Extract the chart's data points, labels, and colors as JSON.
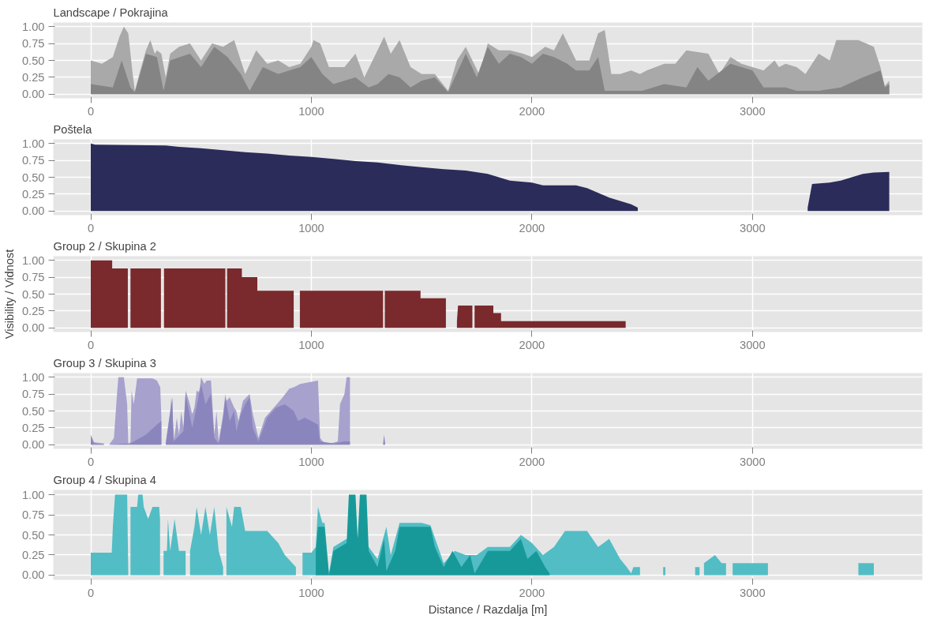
{
  "chart_data": [
    {
      "type": "area",
      "title": "Landscape / Pokrajina",
      "xlim": [
        -170,
        3770
      ],
      "ylim": [
        -0.06,
        1.06
      ],
      "xticks": [
        0,
        1000,
        2000,
        3000
      ],
      "yticks": [
        {
          "value": 0,
          "label": "0.00"
        },
        {
          "value": 0.25,
          "label": "0.25"
        },
        {
          "value": 0.5,
          "label": "0.50"
        },
        {
          "value": 0.75,
          "label": "0.75"
        },
        {
          "value": 1,
          "label": "1.00"
        }
      ],
      "grid": true,
      "series": [
        {
          "color": "#a9a9a9",
          "x": [
            0,
            50,
            100,
            130,
            150,
            170,
            190,
            200,
            220,
            250,
            270,
            290,
            300,
            320,
            340,
            360,
            400,
            450,
            500,
            550,
            600,
            650,
            700,
            750,
            800,
            850,
            900,
            950,
            1000,
            1010,
            1040,
            1080,
            1150,
            1200,
            1240,
            1300,
            1330,
            1360,
            1400,
            1450,
            1500,
            1560,
            1620,
            1660,
            1700,
            1760,
            1800,
            1850,
            1900,
            1960,
            2000,
            2060,
            2100,
            2140,
            2200,
            2260,
            2300,
            2330,
            2360,
            2400,
            2450,
            2490,
            2520,
            2600,
            2650,
            2700,
            2800,
            2850,
            2900,
            2950,
            3000,
            3050,
            3100,
            3120,
            3150,
            3200,
            3240,
            3280,
            3300,
            3350,
            3380,
            3420,
            3480,
            3550,
            3580,
            3600,
            3620
          ],
          "values": [
            0.5,
            0.45,
            0.55,
            0.85,
            1.0,
            0.9,
            0.3,
            0.05,
            0.3,
            0.65,
            0.8,
            0.6,
            0.65,
            0.6,
            0.25,
            0.6,
            0.7,
            0.75,
            0.5,
            0.75,
            0.7,
            0.8,
            0.3,
            0.65,
            0.45,
            0.5,
            0.4,
            0.45,
            0.7,
            0.8,
            0.75,
            0.4,
            0.4,
            0.6,
            0.25,
            0.65,
            0.85,
            0.6,
            0.8,
            0.4,
            0.3,
            0.3,
            0.05,
            0.5,
            0.7,
            0.3,
            0.75,
            0.65,
            0.65,
            0.6,
            0.55,
            0.7,
            0.65,
            0.9,
            0.5,
            0.5,
            0.9,
            0.95,
            0.3,
            0.3,
            0.35,
            0.3,
            0.35,
            0.45,
            0.45,
            0.65,
            0.6,
            0.3,
            0.55,
            0.45,
            0.4,
            0.35,
            0.5,
            0.4,
            0.45,
            0.4,
            0.3,
            0.5,
            0.6,
            0.5,
            0.8,
            0.8,
            0.8,
            0.7,
            0.4,
            0.12,
            0.2
          ]
        },
        {
          "color": "#848484",
          "x": [
            0,
            100,
            140,
            180,
            200,
            250,
            300,
            330,
            360,
            450,
            500,
            560,
            620,
            680,
            720,
            780,
            850,
            900,
            950,
            1000,
            1050,
            1100,
            1200,
            1260,
            1300,
            1350,
            1400,
            1450,
            1500,
            1560,
            1620,
            1700,
            1750,
            1800,
            1850,
            1900,
            1950,
            2000,
            2050,
            2100,
            2160,
            2200,
            2260,
            2300,
            2330,
            2400,
            2500,
            2600,
            2700,
            2750,
            2800,
            2900,
            2950,
            3000,
            3050,
            3150,
            3200,
            3300,
            3400,
            3500,
            3580,
            3600,
            3620
          ],
          "values": [
            0.15,
            0.1,
            0.5,
            0.1,
            0.03,
            0.6,
            0.55,
            0.05,
            0.5,
            0.6,
            0.4,
            0.7,
            0.55,
            0.3,
            0.05,
            0.4,
            0.3,
            0.35,
            0.4,
            0.55,
            0.3,
            0.15,
            0.25,
            0.1,
            0.15,
            0.3,
            0.25,
            0.1,
            0.2,
            0.25,
            0.03,
            0.6,
            0.25,
            0.7,
            0.45,
            0.6,
            0.55,
            0.45,
            0.6,
            0.55,
            0.45,
            0.35,
            0.35,
            0.55,
            0.05,
            0.05,
            0.05,
            0.15,
            0.1,
            0.4,
            0.2,
            0.45,
            0.4,
            0.35,
            0.1,
            0.1,
            0.05,
            0.05,
            0.1,
            0.25,
            0.35,
            0.1,
            0.15
          ]
        }
      ]
    },
    {
      "type": "area",
      "title": "Poštela",
      "xlim": [
        -170,
        3770
      ],
      "ylim": [
        -0.06,
        1.06
      ],
      "xticks": [
        0,
        1000,
        2000,
        3000
      ],
      "yticks": [
        {
          "value": 0,
          "label": "0.00"
        },
        {
          "value": 0.25,
          "label": "0.25"
        },
        {
          "value": 0.5,
          "label": "0.50"
        },
        {
          "value": 0.75,
          "label": "0.75"
        },
        {
          "value": 1,
          "label": "1.00"
        }
      ],
      "grid": true,
      "series": [
        {
          "color": "#2b2c5a",
          "x": [
            0,
            20,
            340,
            400,
            500,
            600,
            700,
            800,
            900,
            1000,
            1100,
            1200,
            1300,
            1400,
            1500,
            1600,
            1700,
            1800,
            1900,
            2000,
            2050,
            2200,
            2250,
            2300,
            2350,
            2400,
            2450,
            2480,
            2900,
            3250,
            3270,
            3350,
            3400,
            3450,
            3500,
            3550,
            3620
          ],
          "values": [
            1.0,
            0.98,
            0.97,
            0.95,
            0.93,
            0.9,
            0.87,
            0.85,
            0.82,
            0.8,
            0.77,
            0.74,
            0.72,
            0.68,
            0.65,
            0.62,
            0.6,
            0.55,
            0.45,
            0.42,
            0.38,
            0.38,
            0.34,
            0.27,
            0.2,
            0.15,
            0.1,
            0.05,
            null,
            0.05,
            0.4,
            0.42,
            0.45,
            0.5,
            0.55,
            0.57,
            0.58
          ]
        }
      ]
    },
    {
      "type": "area",
      "title": "Group 2 / Skupina 2",
      "ylabel": "Visibility / Vidnost",
      "xlim": [
        -170,
        3770
      ],
      "ylim": [
        -0.06,
        1.06
      ],
      "xticks": [
        0,
        1000,
        2000,
        3000
      ],
      "yticks": [
        {
          "value": 0,
          "label": "0.00"
        },
        {
          "value": 0.25,
          "label": "0.25"
        },
        {
          "value": 0.5,
          "label": "0.50"
        },
        {
          "value": 0.75,
          "label": "0.75"
        },
        {
          "value": 1,
          "label": "1.00"
        }
      ],
      "grid": true,
      "series": [
        {
          "color": "#7a2a2c",
          "x": [
            0,
            97,
            97,
            168,
            174,
            180,
            318,
            325,
            332,
            610,
            614,
            618,
            685,
            685,
            755,
            755,
            920,
            934,
            948,
            1325,
            1329,
            1333,
            1495,
            1495,
            1610,
            1635,
            1660,
            1665,
            1730,
            1735,
            1740,
            1825,
            1825,
            1860,
            1860,
            2425
          ],
          "values": [
            1.0,
            1.0,
            0.88,
            0.88,
            null,
            0.88,
            0.88,
            null,
            0.88,
            0.88,
            null,
            0.88,
            0.88,
            0.75,
            0.75,
            0.55,
            0.55,
            null,
            0.55,
            0.55,
            null,
            0.55,
            0.55,
            0.44,
            0.44,
            null,
            0.1,
            0.33,
            0.33,
            null,
            0.33,
            0.33,
            0.22,
            0.22,
            0.1,
            0.1
          ]
        }
      ]
    },
    {
      "type": "area",
      "title": "Group 3 / Skupina 3",
      "xlim": [
        -170,
        3770
      ],
      "ylim": [
        -0.06,
        1.06
      ],
      "xticks": [
        0,
        1000,
        2000,
        3000
      ],
      "yticks": [
        {
          "value": 0,
          "label": "0.00"
        },
        {
          "value": 0.25,
          "label": "0.25"
        },
        {
          "value": 0.5,
          "label": "0.50"
        },
        {
          "value": 0.75,
          "label": "0.75"
        },
        {
          "value": 1,
          "label": "1.00"
        }
      ],
      "grid": true,
      "series": [
        {
          "color": "#a6a1cd",
          "x": [
            0,
            15,
            60,
            70,
            85,
            105,
            120,
            125,
            150,
            165,
            170,
            180,
            185,
            195,
            210,
            280,
            300,
            315,
            320,
            330,
            340,
            345,
            360,
            365,
            378,
            390,
            400,
            410,
            420,
            430,
            445,
            460,
            470,
            480,
            490,
            495,
            500,
            515,
            525,
            545,
            560,
            570,
            580,
            600,
            610,
            615,
            630,
            650,
            660,
            670,
            690,
            720,
            735,
            760,
            790,
            830,
            870,
            900,
            920,
            950,
            1030,
            1040,
            1060,
            1100,
            1120,
            1130,
            1150,
            1160,
            1175
          ],
          "values": [
            0.15,
            0.04,
            0.02,
            null,
            0.01,
            0.1,
            0.8,
            1.0,
            1.0,
            0.6,
            0.02,
            0.04,
            0.8,
            0.6,
            0.98,
            0.98,
            0.95,
            0.85,
            0.4,
            null,
            0.03,
            0.15,
            0.5,
            0.7,
            0.08,
            0.4,
            0.15,
            0.5,
            0.25,
            0.8,
            0.65,
            0.45,
            0.55,
            0.8,
            0.78,
            0.85,
            1.0,
            0.9,
            0.95,
            0.95,
            0.15,
            0.5,
            0.05,
            0.45,
            0.75,
            0.65,
            0.7,
            0.55,
            0.5,
            0.35,
            0.65,
            0.75,
            0.45,
            0.1,
            0.4,
            0.55,
            0.7,
            0.83,
            0.85,
            0.9,
            0.95,
            0.1,
            0.02,
            0.03,
            0.05,
            0.6,
            0.75,
            1.0,
            1.0
          ]
        },
        {
          "color": "#8a86bd",
          "x": [
            0,
            15,
            60,
            70,
            85,
            160,
            175,
            185,
            250,
            300,
            320,
            330,
            340,
            370,
            375,
            420,
            430,
            445,
            460,
            500,
            520,
            545,
            560,
            580,
            600,
            610,
            630,
            650,
            660,
            680,
            700,
            720,
            735,
            760,
            800,
            840,
            880,
            920,
            940,
            970,
            1030,
            1040,
            1100,
            1150,
            1175,
            1250,
            1325,
            1330,
            1335
          ],
          "values": [
            0.12,
            0.02,
            0.01,
            null,
            0.0,
            0.02,
            0.01,
            0.03,
            0.15,
            0.3,
            0.35,
            null,
            0.02,
            0.7,
            0.05,
            0.2,
            0.75,
            0.5,
            0.25,
            0.9,
            0.6,
            0.75,
            0.1,
            0.02,
            0.4,
            0.7,
            0.35,
            0.5,
            0.2,
            0.45,
            0.6,
            0.7,
            0.25,
            0.05,
            0.4,
            0.55,
            0.6,
            0.5,
            0.35,
            0.4,
            0.3,
            0.05,
            0.02,
            0.05,
            0.05,
            null,
            0.0,
            0.15,
            0.0
          ]
        }
      ]
    },
    {
      "type": "area",
      "title": "Group 4 / Skupina 4",
      "xlabel": "Distance / Razdalja [m]",
      "xlim": [
        -170,
        3770
      ],
      "ylim": [
        -0.06,
        1.06
      ],
      "xticks": [
        0,
        1000,
        2000,
        3000
      ],
      "yticks": [
        {
          "value": 0,
          "label": "0.00"
        },
        {
          "value": 0.25,
          "label": "0.25"
        },
        {
          "value": 0.5,
          "label": "0.50"
        },
        {
          "value": 0.75,
          "label": "0.75"
        },
        {
          "value": 1,
          "label": "1.00"
        }
      ],
      "grid": true,
      "series": [
        {
          "color": "#52bdc4",
          "x": [
            0,
            95,
            100,
            110,
            165,
            170,
            175,
            180,
            210,
            215,
            235,
            240,
            260,
            280,
            310,
            314,
            322,
            330,
            345,
            350,
            360,
            380,
            400,
            430,
            438,
            450,
            470,
            480,
            500,
            520,
            540,
            560,
            580,
            600,
            605,
            615,
            640,
            650,
            680,
            700,
            740,
            800,
            850,
            880,
            930,
            936,
            960,
            1000,
            1020,
            1030,
            1050,
            1060,
            1080,
            1100,
            1160,
            1260,
            1300,
            1340,
            1360,
            1400,
            1450,
            1500,
            1540,
            1600,
            1650,
            1700,
            1750,
            1800,
            1850,
            1900,
            1950,
            2000,
            2050,
            2100,
            2150,
            2250,
            2300,
            2350,
            2400,
            2430,
            2450,
            2460,
            2490,
            2540,
            2595,
            2605,
            2670,
            2740,
            2760,
            2770,
            2780,
            2830,
            2860,
            2880,
            2895,
            2910,
            3070,
            3270,
            3480,
            3550
          ],
          "values": [
            0.28,
            0.28,
            0.6,
            1.0,
            1.0,
            0.02,
            null,
            0.85,
            0.85,
            1.0,
            1.0,
            0.85,
            0.7,
            0.85,
            0.85,
            0.7,
            null,
            0.3,
            0.3,
            0.7,
            0.3,
            0.7,
            0.3,
            0.3,
            null,
            0.3,
            0.6,
            0.85,
            0.5,
            0.85,
            0.5,
            0.85,
            0.3,
            0.1,
            null,
            0.85,
            0.6,
            0.85,
            0.85,
            0.55,
            0.55,
            0.55,
            0.4,
            0.25,
            0.1,
            null,
            0.28,
            0.28,
            0.35,
            0.85,
            0.65,
            0.65,
            0.02,
            0.35,
            0.45,
            0.35,
            0.2,
            0.6,
            0.25,
            0.65,
            0.65,
            0.65,
            0.62,
            0.15,
            0.3,
            0.25,
            0.25,
            0.35,
            0.35,
            0.35,
            0.5,
            0.4,
            0.25,
            0.35,
            0.55,
            0.55,
            0.35,
            0.45,
            0.2,
            0.1,
            0.02,
            0.1,
            0.1,
            null,
            0.1,
            0.1,
            null,
            0.1,
            0.1,
            null,
            0.15,
            0.25,
            0.15,
            0.15,
            null,
            0.15,
            0.15,
            null,
            0.15,
            0.15
          ]
        },
        {
          "color": "#179999",
          "x": [
            1020,
            1030,
            1060,
            1080,
            1100,
            1160,
            1170,
            1200,
            1210,
            1220,
            1250,
            1260,
            1300,
            1330,
            1340,
            1380,
            1400,
            1500,
            1540,
            1560,
            1600,
            1640,
            1680,
            1720,
            1740,
            1800,
            1850,
            1900,
            1950,
            1980,
            2020,
            2060,
            2080
          ],
          "values": [
            0.3,
            0.6,
            0.6,
            0.0,
            0.3,
            0.4,
            1.0,
            1.0,
            0.45,
            1.0,
            1.0,
            0.3,
            0.1,
            0.45,
            0.05,
            0.3,
            0.6,
            0.6,
            0.6,
            0.35,
            0.1,
            0.3,
            0.1,
            0.25,
            0.02,
            0.3,
            0.3,
            0.3,
            0.45,
            0.2,
            0.3,
            0.1,
            0.02
          ]
        }
      ]
    }
  ]
}
